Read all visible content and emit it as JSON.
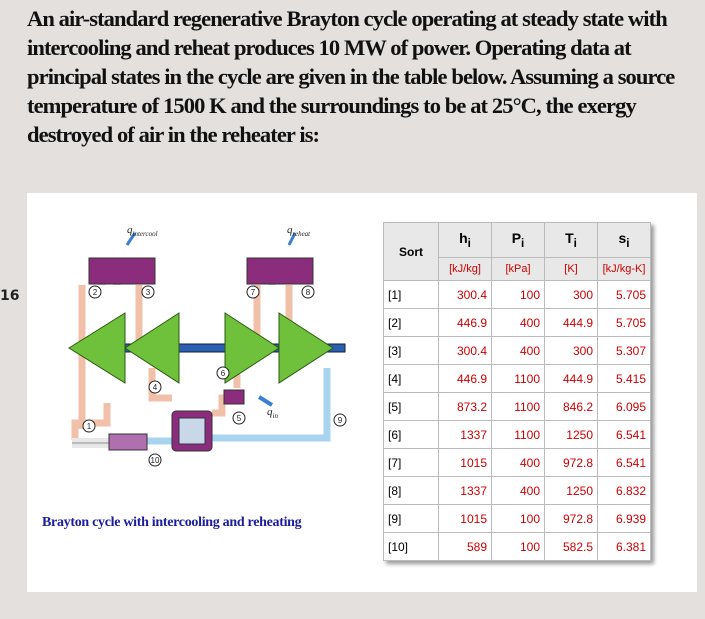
{
  "question": "An air-standard regenerative Brayton cycle operating at steady state with intercooling and reheat produces 10 MW of power. Operating data at principal states in the cycle are given in the table below. Assuming a source temperature of 1500 K and the surroundings to be at 25°C, the exergy destroyed of air in the reheater is:",
  "side_number": "16",
  "diagram": {
    "caption": "Brayton cycle with intercooling and reheating",
    "heat_labels": [
      {
        "symbol": "q",
        "sub": "intercool"
      },
      {
        "symbol": "q",
        "sub": "reheat"
      },
      {
        "symbol": "q",
        "sub": "in"
      }
    ],
    "states": [
      "1",
      "2",
      "3",
      "4",
      "5",
      "6",
      "7",
      "8",
      "9",
      "10"
    ]
  },
  "table": {
    "sort_header": "Sort",
    "columns": [
      {
        "symbol": "h",
        "sub": "i",
        "unit": "[kJ/kg]"
      },
      {
        "symbol": "P",
        "sub": "i",
        "unit": "[kPa]"
      },
      {
        "symbol": "T",
        "sub": "i",
        "unit": "[K]"
      },
      {
        "symbol": "s",
        "sub": "i",
        "unit": "[kJ/kg-K]"
      }
    ],
    "rows": [
      [
        "[1]",
        "300.4",
        "100",
        "300",
        "5.705"
      ],
      [
        "[2]",
        "446.9",
        "400",
        "444.9",
        "5.705"
      ],
      [
        "[3]",
        "300.4",
        "400",
        "300",
        "5.307"
      ],
      [
        "[4]",
        "446.9",
        "1100",
        "444.9",
        "5.415"
      ],
      [
        "[5]",
        "873.2",
        "1100",
        "846.2",
        "6.095"
      ],
      [
        "[6]",
        "1337",
        "1100",
        "1250",
        "6.541"
      ],
      [
        "[7]",
        "1015",
        "400",
        "972.8",
        "6.541"
      ],
      [
        "[8]",
        "1337",
        "400",
        "1250",
        "6.832"
      ],
      [
        "[9]",
        "1015",
        "100",
        "972.8",
        "6.939"
      ],
      [
        "[10]",
        "589",
        "100",
        "582.5",
        "6.381"
      ]
    ]
  }
}
